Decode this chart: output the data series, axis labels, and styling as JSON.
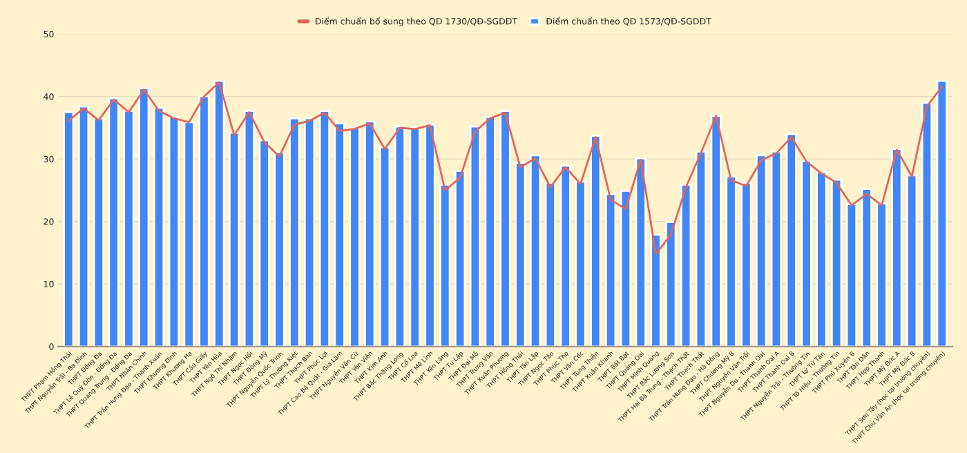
{
  "chart_data": {
    "type": "bar",
    "categories": [
      "THPT Phạm Hồng Thái",
      "THPT Nguyễn Trãi - Ba Đình",
      "THPT Đống Đa",
      "THPT Lê Quý Đôn - Đống Đa",
      "THPT Quang Trung - Đống Đa",
      "THPT Nhân Chính",
      "THPT Trần Hưng Đạo - Thanh Xuân",
      "THPT Khương Đình",
      "THPT Khương Hạ",
      "THPT Cầu Giấy",
      "THPT Yên Hòa",
      "THPT Ngô Thì Nhậm",
      "THPT Ngọc Hồi",
      "THPT Đông Mỹ",
      "THPT Nguyễn Quốc Trinh",
      "THPT Lý Thường Kiệt",
      "THPT Thạch Bàn",
      "THPT Phúc Lợi",
      "THPT Cao Bá Quát - Gia Lâm",
      "THPT Nguyễn Văn Cừ",
      "THPT Yên Viên",
      "THPT Kim Anh",
      "THPT Bắc Thăng Long",
      "THPT Cổ Loa",
      "THPT Mê Linh",
      "THPT Yên Lãng",
      "THPT Tự Lập",
      "THPT Đại Mỗ",
      "THPT Trung Văn",
      "THPT Xuân Phương",
      "THPT Hồng Thái",
      "THPT Tân Lập",
      "THPT Ngọc Tảo",
      "THPT Phúc Thọ",
      "THPT Vân Cốc",
      "THPT Tùng Thiện",
      "THPT Xuân Khanh",
      "THPT Bất Bạt",
      "THPT Quảng Oai",
      "THPT Minh Quang",
      "THPT Bắc Lương Sơn",
      "THPT Hai Bà Trưng - Thạch Thất",
      "THPT Thạch Thất",
      "THPT Trần Hưng Đạo - Hà Đông",
      "THPT Chương Mỹ B",
      "THPT Nguyễn Văn Trỗi",
      "THPT Nguyễn Du - Thanh Oai",
      "THPT Thanh Oai A",
      "THPT Thanh Oai B",
      "THPT Nguyễn Trãi - Thường Tín",
      "THPT Lý Tử Tấn",
      "THPT Tô Hiệu - Thường Tín",
      "THPT Phú Xuyên B",
      "THPT Tân Dân",
      "THPT Hợp Thanh",
      "THPT Mỹ Đức A",
      "THPT Mỹ Đức B",
      "THPT Sơn Tây (học tại trường chuyên)",
      "THPT Chu Văn An (học tại trường chuyên)"
    ],
    "series": [
      {
        "name": "Điểm chuẩn bổ sung theo QĐ 1730/QĐ-SGDĐT",
        "type": "line",
        "color": "#e0665b",
        "values": [
          36.1,
          38.1,
          36.2,
          39.5,
          37.5,
          41.1,
          37.7,
          36.5,
          35.9,
          40.0,
          42.3,
          33.8,
          37.5,
          32.7,
          30.4,
          35.5,
          36.1,
          37.4,
          34.5,
          34.8,
          35.7,
          31.6,
          35.0,
          34.8,
          35.4,
          25.0,
          27.0,
          34.4,
          36.5,
          37.4,
          28.7,
          30.1,
          25.5,
          28.7,
          26.0,
          33.5,
          23.5,
          22.0,
          29.9,
          14.8,
          17.9,
          25.5,
          31.0,
          36.9,
          26.6,
          25.7,
          29.8,
          30.9,
          33.5,
          29.6,
          27.7,
          26.2,
          22.6,
          24.4,
          22.6,
          31.5,
          27.2,
          38.4,
          41.6
        ]
      },
      {
        "name": "Điểm chuẩn theo QĐ 1573/QĐ-SGDĐT",
        "color": "#4285f4",
        "values": [
          37.5,
          38.4,
          36.5,
          39.7,
          37.7,
          41.3,
          38.2,
          36.7,
          35.9,
          40.0,
          42.5,
          34.2,
          37.7,
          33.0,
          31.1,
          36.5,
          36.5,
          37.7,
          35.7,
          35.0,
          36.0,
          31.9,
          35.2,
          35.0,
          35.5,
          25.9,
          28.1,
          35.2,
          36.7,
          37.7,
          29.4,
          30.6,
          26.2,
          28.9,
          26.4,
          33.7,
          24.4,
          24.9,
          30.1,
          17.9,
          19.9,
          25.9,
          31.2,
          36.9,
          27.2,
          26.2,
          30.6,
          31.2,
          34.0,
          29.7,
          27.9,
          26.7,
          22.8,
          25.2,
          22.9,
          31.6,
          27.4,
          39.0,
          42.5
        ]
      }
    ],
    "ylim": [
      0,
      50
    ],
    "yticks": [
      0,
      10,
      20,
      30,
      40,
      50
    ],
    "grid": "y",
    "legend": "top"
  }
}
